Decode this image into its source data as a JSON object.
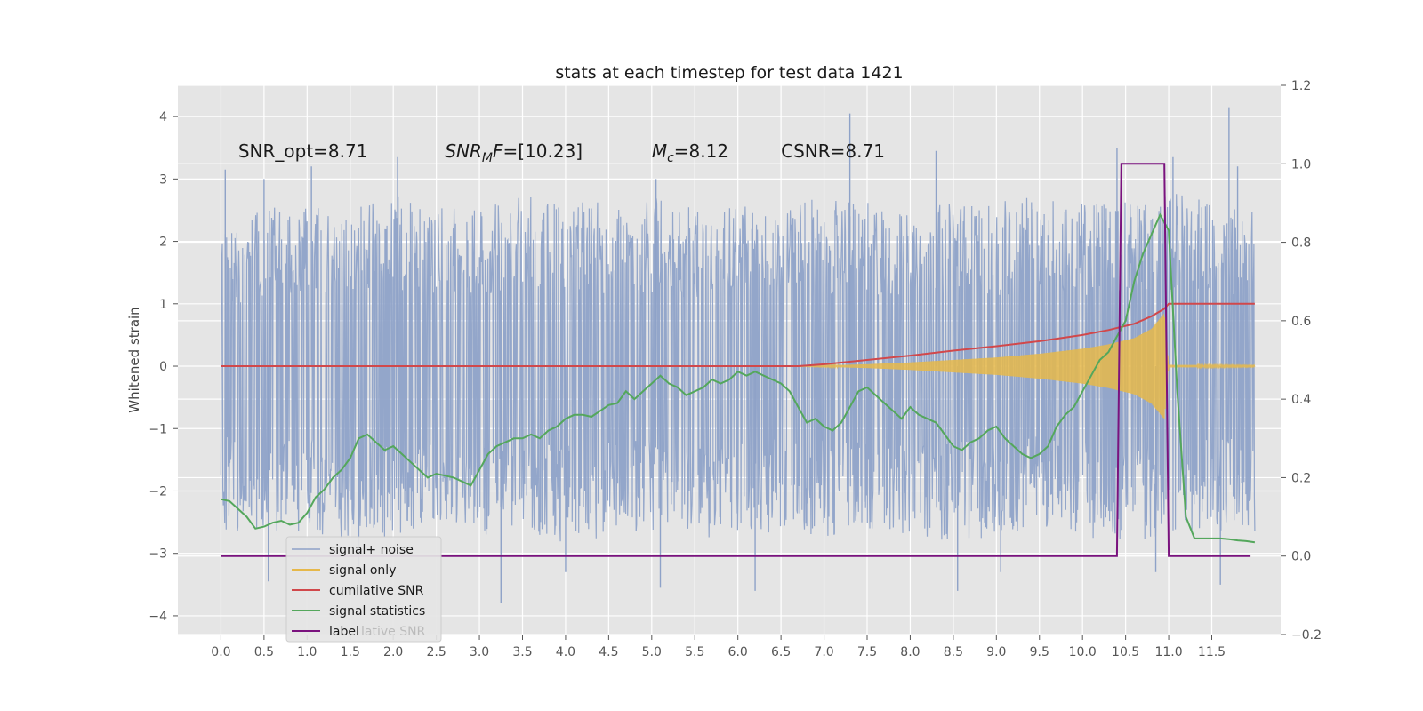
{
  "chart_data": {
    "type": "line",
    "title": "stats at each timestep for test data 1421",
    "ylabel": "Whitened strain",
    "xlabel": "",
    "xlim": [
      -0.5,
      12.3
    ],
    "ylim": [
      -4.3,
      4.5
    ],
    "y2lim": [
      -0.2,
      1.2
    ],
    "grid": true,
    "legend_position": "lower-left",
    "x_ticks": [
      "0.0",
      "0.5",
      "1.0",
      "1.5",
      "2.0",
      "2.5",
      "3.0",
      "3.5",
      "4.0",
      "4.5",
      "5.0",
      "5.5",
      "6.0",
      "6.5",
      "7.0",
      "7.5",
      "8.0",
      "8.5",
      "9.0",
      "9.5",
      "10.0",
      "10.5",
      "11.0",
      "11.5"
    ],
    "y_ticks": [
      "−4",
      "−3",
      "−2",
      "−1",
      "0",
      "1",
      "2",
      "3",
      "4"
    ],
    "y2_ticks": [
      "−0.2",
      "0.0",
      "0.2",
      "0.4",
      "0.6",
      "0.8",
      "1.0",
      "1.2"
    ],
    "annotations": [
      {
        "text": "SNR_opt=8.71",
        "x": 0.2,
        "y": 3.35
      },
      {
        "text_main": "SNR",
        "text_sub": "M",
        "text_rest": "F=[10.23]",
        "x": 2.6,
        "y": 3.35
      },
      {
        "text_main": "M",
        "text_sub": "c",
        "text_rest": "=8.12",
        "x": 5.0,
        "y": 3.35
      },
      {
        "text": "CSNR=8.71",
        "x": 6.5,
        "y": 3.35
      }
    ],
    "series": [
      {
        "name": "signal+ noise",
        "axis": "left",
        "color": "#8ea2c8",
        "x_range": [
          0.0,
          12.0
        ],
        "envelope_upper_approx": [
          2.1,
          2.4,
          2.5,
          2.4,
          2.6,
          2.5,
          2.4,
          2.6,
          2.5,
          2.5,
          2.6,
          2.4,
          2.5,
          2.4,
          2.6,
          2.5,
          2.4,
          2.5,
          2.5,
          2.6,
          2.5,
          2.6,
          2.7,
          2.6,
          2.4
        ],
        "envelope_lower_approx": [
          -2.5,
          -2.6,
          -2.5,
          -2.7,
          -2.6,
          -2.5,
          -2.6,
          -2.5,
          -2.7,
          -2.6,
          -2.5,
          -2.6,
          -2.7,
          -2.5,
          -2.6,
          -2.5,
          -2.6,
          -2.7,
          -2.6,
          -2.5,
          -2.6,
          -2.7,
          -2.6,
          -2.5,
          -2.6
        ],
        "spikes": [
          {
            "x": 0.05,
            "y": 3.15
          },
          {
            "x": 0.5,
            "y": 3.0
          },
          {
            "x": 0.55,
            "y": -3.45
          },
          {
            "x": 1.05,
            "y": 3.2
          },
          {
            "x": 1.6,
            "y": -3.2
          },
          {
            "x": 2.05,
            "y": 3.35
          },
          {
            "x": 3.25,
            "y": -3.8
          },
          {
            "x": 4.0,
            "y": -3.3
          },
          {
            "x": 5.05,
            "y": 3.0
          },
          {
            "x": 5.1,
            "y": -3.55
          },
          {
            "x": 6.2,
            "y": -3.6
          },
          {
            "x": 7.3,
            "y": 4.05
          },
          {
            "x": 8.3,
            "y": 3.45
          },
          {
            "x": 8.55,
            "y": -3.6
          },
          {
            "x": 9.05,
            "y": -3.3
          },
          {
            "x": 10.4,
            "y": 3.5
          },
          {
            "x": 10.85,
            "y": -3.3
          },
          {
            "x": 11.05,
            "y": 3.35
          },
          {
            "x": 11.6,
            "y": -3.5
          },
          {
            "x": 11.7,
            "y": 4.15
          },
          {
            "x": 11.8,
            "y": 3.2
          }
        ]
      },
      {
        "name": "signal only",
        "axis": "left",
        "color": "#e6b84a",
        "envelope": {
          "x": [
            6.5,
            7.0,
            7.5,
            8.0,
            8.5,
            9.0,
            9.5,
            10.0,
            10.3,
            10.6,
            10.8,
            10.95,
            11.0,
            12.0
          ],
          "amp": [
            0.0,
            0.01,
            0.03,
            0.06,
            0.1,
            0.14,
            0.2,
            0.28,
            0.35,
            0.45,
            0.6,
            0.85,
            0.02,
            0.01
          ]
        }
      },
      {
        "name": "cumilative SNR",
        "axis": "left",
        "color": "#d1484b",
        "x": [
          0.0,
          6.7,
          7.0,
          7.5,
          8.0,
          8.5,
          9.0,
          9.5,
          10.0,
          10.3,
          10.6,
          10.8,
          10.95,
          11.0,
          12.0
        ],
        "values": [
          0.0,
          0.0,
          0.03,
          0.1,
          0.17,
          0.25,
          0.32,
          0.4,
          0.5,
          0.58,
          0.68,
          0.8,
          0.92,
          1.0,
          1.0
        ]
      },
      {
        "name": "signal statistics",
        "axis": "right",
        "color": "#54a75c",
        "x": [
          0.0,
          0.1,
          0.2,
          0.3,
          0.4,
          0.5,
          0.6,
          0.7,
          0.8,
          0.9,
          1.0,
          1.1,
          1.2,
          1.3,
          1.4,
          1.5,
          1.6,
          1.7,
          1.8,
          1.9,
          2.0,
          2.1,
          2.2,
          2.3,
          2.4,
          2.5,
          2.6,
          2.7,
          2.8,
          2.9,
          3.0,
          3.1,
          3.2,
          3.3,
          3.4,
          3.5,
          3.6,
          3.7,
          3.8,
          3.9,
          4.0,
          4.1,
          4.2,
          4.3,
          4.4,
          4.5,
          4.6,
          4.7,
          4.8,
          4.9,
          5.0,
          5.1,
          5.2,
          5.3,
          5.4,
          5.5,
          5.6,
          5.7,
          5.8,
          5.9,
          6.0,
          6.1,
          6.2,
          6.3,
          6.4,
          6.5,
          6.6,
          6.7,
          6.8,
          6.9,
          7.0,
          7.1,
          7.2,
          7.3,
          7.4,
          7.5,
          7.6,
          7.7,
          7.8,
          7.9,
          8.0,
          8.1,
          8.2,
          8.3,
          8.4,
          8.5,
          8.6,
          8.7,
          8.8,
          8.9,
          9.0,
          9.1,
          9.2,
          9.3,
          9.4,
          9.5,
          9.6,
          9.7,
          9.8,
          9.9,
          10.0,
          10.1,
          10.2,
          10.3,
          10.4,
          10.5,
          10.6,
          10.7,
          10.8,
          10.9,
          11.0,
          11.1,
          11.2,
          11.3,
          11.4,
          11.5,
          11.6,
          11.7,
          11.8,
          11.9,
          12.0
        ],
        "values": [
          0.145,
          0.14,
          0.12,
          0.1,
          0.07,
          0.075,
          0.085,
          0.09,
          0.08,
          0.085,
          0.11,
          0.15,
          0.17,
          0.2,
          0.22,
          0.25,
          0.3,
          0.31,
          0.29,
          0.27,
          0.28,
          0.26,
          0.24,
          0.22,
          0.2,
          0.21,
          0.205,
          0.2,
          0.19,
          0.18,
          0.22,
          0.26,
          0.28,
          0.29,
          0.3,
          0.3,
          0.31,
          0.3,
          0.32,
          0.33,
          0.35,
          0.36,
          0.36,
          0.355,
          0.37,
          0.385,
          0.39,
          0.42,
          0.4,
          0.42,
          0.44,
          0.46,
          0.44,
          0.43,
          0.41,
          0.42,
          0.43,
          0.45,
          0.44,
          0.45,
          0.47,
          0.46,
          0.47,
          0.46,
          0.45,
          0.44,
          0.42,
          0.38,
          0.34,
          0.35,
          0.33,
          0.32,
          0.34,
          0.38,
          0.42,
          0.43,
          0.41,
          0.39,
          0.37,
          0.35,
          0.38,
          0.36,
          0.35,
          0.34,
          0.31,
          0.28,
          0.27,
          0.29,
          0.3,
          0.32,
          0.33,
          0.3,
          0.28,
          0.26,
          0.25,
          0.26,
          0.28,
          0.33,
          0.36,
          0.38,
          0.42,
          0.46,
          0.5,
          0.52,
          0.56,
          0.6,
          0.7,
          0.77,
          0.82,
          0.87,
          0.83,
          0.42,
          0.1,
          0.045,
          0.045,
          0.045,
          0.045,
          0.043,
          0.04,
          0.038,
          0.035
        ]
      },
      {
        "name": "label",
        "axis": "right",
        "color": "#7a127e",
        "x": [
          0.0,
          10.4,
          10.45,
          10.95,
          11.0,
          11.95
        ],
        "values": [
          0.0,
          0.0,
          1.0,
          1.0,
          0.0,
          0.0
        ]
      }
    ],
    "legend_overlap_text": "lative SNR"
  }
}
